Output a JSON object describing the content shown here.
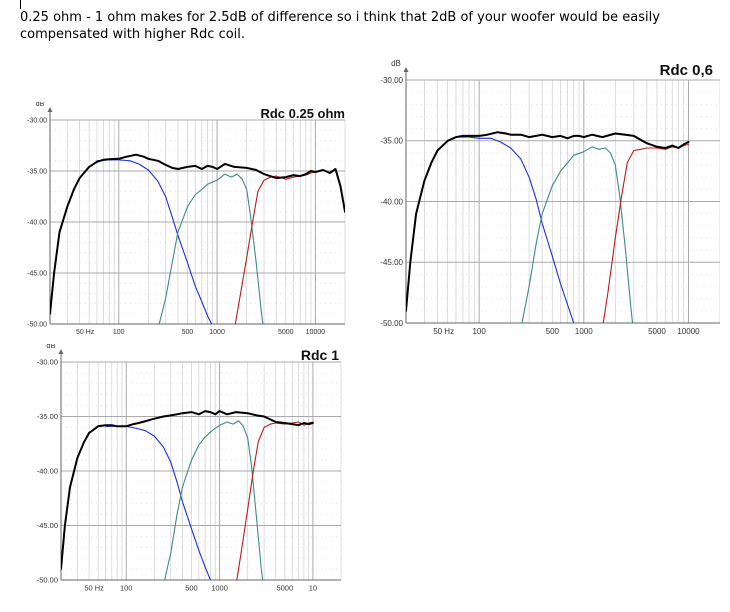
{
  "post": {
    "text": "0.25 ohm - 1 ohm makes for 2.5dB of difference so i think that 2dB of your woofer would be easily compensated with higher Rdc coil."
  },
  "colors": {
    "sum": "#000000",
    "woofer": "#1c2fd8",
    "mid": "#3f8a84",
    "tweeter": "#b81d1d",
    "grid_major": "#a9a9a9",
    "grid_minor": "#d4d4d4",
    "axis": "#666666"
  },
  "chart_data": [
    {
      "type": "line",
      "title": "Rdc 0.25 ohm",
      "ylabel": "dB",
      "xscale": "log",
      "ylim": [
        -50,
        -30
      ],
      "xlim": [
        20,
        20000
      ],
      "yticks": [
        "-30.00",
        "-35.00",
        "-40.00",
        "-45.00",
        "-50.00"
      ],
      "xtick_labels": [
        "50 Hz",
        "100",
        "500",
        "1000",
        "5000",
        "10000"
      ],
      "series": [
        {
          "key": "sum",
          "x": [
            20,
            22,
            25,
            30,
            35,
            40,
            50,
            60,
            70,
            80,
            100,
            120,
            150,
            180,
            200,
            250,
            300,
            350,
            400,
            500,
            600,
            700,
            800,
            900,
            1000,
            1200,
            1500,
            2000,
            2500,
            3000,
            4000,
            5000,
            6000,
            7000,
            8000,
            9000,
            10000,
            12000,
            14000,
            16000,
            18000,
            20000
          ],
          "y": [
            -49,
            -45,
            -41,
            -38.5,
            -36.8,
            -35.7,
            -34.6,
            -34.1,
            -33.9,
            -33.85,
            -33.8,
            -33.6,
            -33.4,
            -33.6,
            -33.8,
            -34.0,
            -34.4,
            -34.7,
            -34.8,
            -34.6,
            -34.5,
            -34.8,
            -34.5,
            -34.6,
            -34.8,
            -34.3,
            -34.6,
            -34.7,
            -34.9,
            -35.3,
            -35.7,
            -35.6,
            -35.4,
            -35.5,
            -35.3,
            -35.0,
            -35.1,
            -34.9,
            -35.2,
            -34.8,
            -36.5,
            -39.0
          ]
        },
        {
          "key": "woofer",
          "x": [
            60,
            80,
            100,
            130,
            160,
            200,
            250,
            300,
            350,
            400,
            500,
            600,
            700,
            800,
            900,
            1000
          ],
          "y": [
            -34.0,
            -33.9,
            -33.9,
            -34.0,
            -34.3,
            -34.9,
            -36.0,
            -37.5,
            -39.5,
            -41.3,
            -44.0,
            -46.3,
            -47.8,
            -49.2,
            -50.2,
            -51.0
          ]
        },
        {
          "key": "mid",
          "x": [
            250,
            300,
            350,
            400,
            500,
            600,
            700,
            800,
            1000,
            1200,
            1400,
            1600,
            1800,
            2000,
            2200,
            2500,
            2800,
            3000
          ],
          "y": [
            -50.5,
            -47.5,
            -44.0,
            -41.0,
            -38.5,
            -37.3,
            -36.8,
            -36.3,
            -35.9,
            -35.3,
            -35.6,
            -35.3,
            -35.8,
            -36.8,
            -39.5,
            -44.0,
            -48.5,
            -51.0
          ]
        },
        {
          "key": "tweeter",
          "x": [
            1500,
            1700,
            2000,
            2300,
            2600,
            3000,
            3500,
            4000,
            5000,
            6000,
            7000,
            8000,
            9000,
            10000
          ],
          "y": [
            -50.5,
            -47.5,
            -43.5,
            -40.0,
            -37.0,
            -35.9,
            -35.6,
            -35.5,
            -35.8,
            -35.6,
            -35.5,
            -35.4,
            -35.2,
            -35.1
          ]
        }
      ]
    },
    {
      "type": "line",
      "title": "Rdc 0,6",
      "ylabel": "dB",
      "xscale": "log",
      "ylim": [
        -50,
        -30
      ],
      "xlim": [
        20,
        20000
      ],
      "yticks": [
        "-30.00",
        "-35.00",
        "-40.00",
        "-45.00",
        "-50.00"
      ],
      "xtick_labels": [
        "50 Hz",
        "100",
        "500",
        "1000",
        "5000",
        "10000"
      ],
      "series": [
        {
          "key": "sum",
          "x": [
            20,
            22,
            25,
            30,
            35,
            40,
            50,
            60,
            70,
            80,
            100,
            120,
            150,
            180,
            200,
            250,
            300,
            350,
            400,
            500,
            600,
            700,
            800,
            900,
            1000,
            1200,
            1500,
            2000,
            2500,
            3000,
            4000,
            5000,
            6000,
            7000,
            8000,
            9000,
            10000
          ],
          "y": [
            -49,
            -45,
            -41,
            -38.3,
            -36.8,
            -35.8,
            -35.0,
            -34.7,
            -34.6,
            -34.6,
            -34.6,
            -34.5,
            -34.3,
            -34.4,
            -34.5,
            -34.5,
            -34.7,
            -34.6,
            -34.5,
            -34.7,
            -34.6,
            -34.8,
            -34.6,
            -34.6,
            -34.7,
            -34.5,
            -34.7,
            -34.4,
            -34.5,
            -34.6,
            -35.2,
            -35.5,
            -35.6,
            -35.4,
            -35.6,
            -35.3,
            -35.1
          ]
        },
        {
          "key": "woofer",
          "x": [
            60,
            80,
            100,
            130,
            160,
            200,
            250,
            300,
            350,
            400,
            500,
            600,
            700,
            800,
            900,
            1000
          ],
          "y": [
            -34.7,
            -34.7,
            -34.8,
            -34.8,
            -35.1,
            -35.6,
            -36.5,
            -38.0,
            -39.8,
            -41.8,
            -44.5,
            -46.8,
            -48.5,
            -50.0,
            -51.0,
            -51.8
          ]
        },
        {
          "key": "mid",
          "x": [
            250,
            300,
            350,
            400,
            500,
            600,
            700,
            800,
            1000,
            1200,
            1400,
            1600,
            1800,
            2000,
            2200,
            2500,
            2800,
            3000
          ],
          "y": [
            -50.5,
            -47.0,
            -43.5,
            -41.0,
            -38.7,
            -37.5,
            -36.8,
            -36.2,
            -35.9,
            -35.5,
            -35.7,
            -35.6,
            -36.0,
            -37.0,
            -39.5,
            -44.0,
            -48.5,
            -51.0
          ]
        },
        {
          "key": "tweeter",
          "x": [
            1500,
            1700,
            2000,
            2300,
            2600,
            3000,
            3500,
            4000,
            5000,
            6000,
            7000,
            8000,
            9000,
            10000
          ],
          "y": [
            -50.5,
            -47.5,
            -43.0,
            -39.5,
            -36.8,
            -35.8,
            -35.7,
            -35.6,
            -35.6,
            -35.7,
            -35.5,
            -35.6,
            -35.4,
            -35.3
          ]
        }
      ]
    },
    {
      "type": "line",
      "title": "Rdc 1",
      "ylabel": "dB",
      "xscale": "log",
      "ylim": [
        -50,
        -30
      ],
      "xlim": [
        20,
        20000
      ],
      "yticks": [
        "-30.00",
        "-35.00",
        "-40.00",
        "-45.00",
        "-50.00"
      ],
      "xtick_labels": [
        "50 Hz",
        "100",
        "500",
        "1000",
        "5000",
        "10"
      ],
      "series": [
        {
          "key": "sum",
          "x": [
            20,
            22,
            25,
            30,
            35,
            40,
            50,
            60,
            70,
            80,
            100,
            120,
            150,
            180,
            200,
            250,
            300,
            350,
            400,
            500,
            600,
            700,
            800,
            900,
            1000,
            1200,
            1500,
            2000,
            2500,
            3000,
            4000,
            5000,
            6000,
            7000,
            8000,
            9000,
            10000
          ],
          "y": [
            -49,
            -45,
            -41.5,
            -38.8,
            -37.4,
            -36.5,
            -35.9,
            -35.8,
            -35.8,
            -35.9,
            -35.9,
            -35.7,
            -35.5,
            -35.3,
            -35.2,
            -35.0,
            -34.9,
            -34.8,
            -34.7,
            -34.6,
            -34.8,
            -34.5,
            -34.6,
            -34.8,
            -34.5,
            -34.8,
            -34.6,
            -34.7,
            -34.9,
            -35.0,
            -35.5,
            -35.6,
            -35.7,
            -35.8,
            -35.6,
            -35.7,
            -35.6
          ]
        },
        {
          "key": "woofer",
          "x": [
            60,
            80,
            100,
            130,
            160,
            200,
            250,
            300,
            350,
            400,
            500,
            600,
            700,
            800,
            900,
            1000
          ],
          "y": [
            -35.9,
            -35.9,
            -35.9,
            -36.1,
            -36.3,
            -36.8,
            -37.8,
            -39.2,
            -41.0,
            -42.8,
            -45.3,
            -47.3,
            -48.8,
            -50.0,
            -51.0,
            -51.8
          ]
        },
        {
          "key": "mid",
          "x": [
            250,
            300,
            350,
            400,
            500,
            600,
            700,
            800,
            1000,
            1200,
            1400,
            1600,
            1800,
            2000,
            2200,
            2500,
            2800,
            3000
          ],
          "y": [
            -50.5,
            -47.5,
            -44.0,
            -41.5,
            -39.0,
            -37.6,
            -36.9,
            -36.4,
            -35.8,
            -35.5,
            -35.7,
            -35.4,
            -35.9,
            -37.0,
            -39.5,
            -44.5,
            -49.0,
            -51.0
          ]
        },
        {
          "key": "tweeter",
          "x": [
            1500,
            1700,
            2000,
            2300,
            2600,
            3000,
            3500,
            4000,
            5000,
            6000,
            7000,
            8000,
            9000,
            10000
          ],
          "y": [
            -50.5,
            -47.5,
            -43.5,
            -40.0,
            -37.3,
            -36.0,
            -35.7,
            -35.6,
            -35.7,
            -35.6,
            -35.5,
            -35.8,
            -35.6,
            -35.5
          ]
        }
      ]
    }
  ]
}
